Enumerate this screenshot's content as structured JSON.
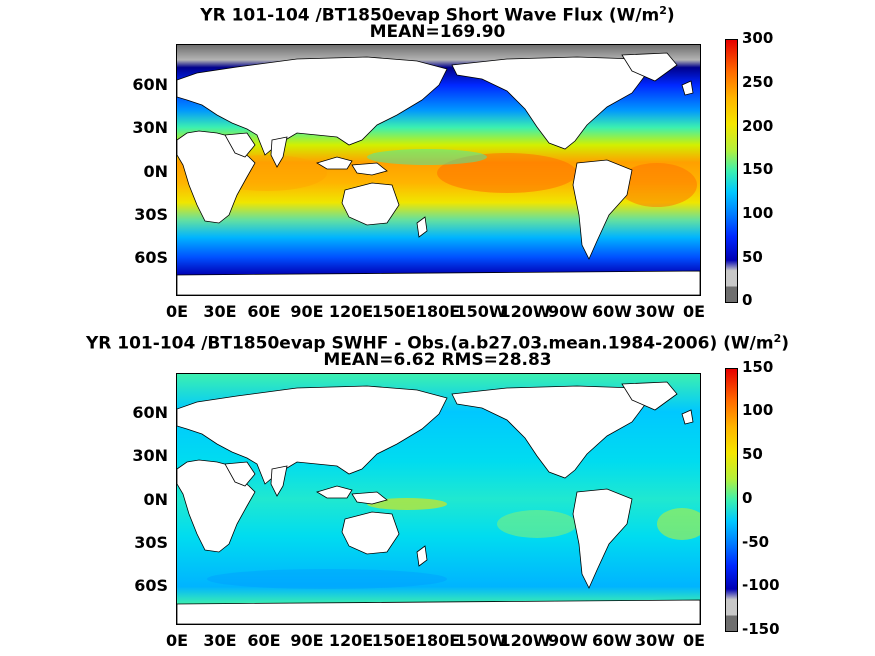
{
  "panel_top": {
    "title_main": "YR 101-104 /BT1850evap  Short Wave Flux (W/m",
    "title_sup": "2",
    "title_end": ")",
    "subtitle": "MEAN=169.90",
    "lat_labels": [
      "60N",
      "30N",
      "0N",
      "30S",
      "60S"
    ],
    "lon_labels": [
      "0E",
      "30E",
      "60E",
      "90E",
      "120E",
      "150E",
      "180E",
      "150W",
      "120W",
      "90W",
      "60W",
      "30W",
      "0E"
    ],
    "colorbar_ticks": [
      "300",
      "250",
      "200",
      "150",
      "100",
      "50",
      "0"
    ],
    "colorbar_range": [
      0,
      300
    ]
  },
  "panel_bottom": {
    "title_main": "YR 101-104 /BT1850evap SWHF - Obs.(a.b27.03.mean.1984-2006) (W/m",
    "title_sup": "2",
    "title_end": ")",
    "subtitle": "MEAN=6.62 RMS=28.83",
    "lat_labels": [
      "60N",
      "30N",
      "0N",
      "30S",
      "60S"
    ],
    "lon_labels": [
      "0E",
      "30E",
      "60E",
      "90E",
      "120E",
      "150E",
      "180E",
      "150W",
      "120W",
      "90W",
      "60W",
      "30W",
      "0E"
    ],
    "colorbar_ticks": [
      "150",
      "100",
      "50",
      "0",
      "-50",
      "-100",
      "-150"
    ],
    "colorbar_range": [
      -150,
      150
    ]
  },
  "colors": {
    "land": "#ffffff",
    "missing": "#6e6e6e",
    "ice": "#c8c8c8",
    "jet_top": "#e60000",
    "jet_mid": "#3cf0b0",
    "jet_bottom": "#00008c"
  }
}
